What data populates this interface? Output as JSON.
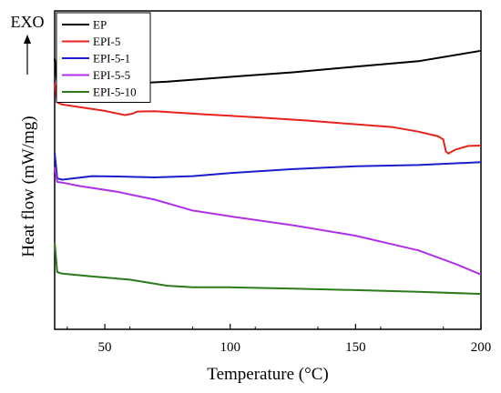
{
  "chart_data": {
    "type": "line",
    "xlabel": "Temperature (°C)",
    "ylabel": "Heat flow (mW/mg)",
    "annotation": "EXO",
    "xlim": [
      30,
      200
    ],
    "ylim": [
      0,
      100
    ],
    "x_ticks": [
      50,
      100,
      150,
      200
    ],
    "y_ticks_shown": false,
    "legend_position": "top-left",
    "series": [
      {
        "name": "EP",
        "color": "#000000",
        "points": [
          [
            30,
            85
          ],
          [
            31,
            76.8
          ],
          [
            35,
            76.2
          ],
          [
            50,
            76.8
          ],
          [
            75,
            77.8
          ],
          [
            100,
            79.3
          ],
          [
            125,
            80.7
          ],
          [
            150,
            82.5
          ],
          [
            175,
            84.2
          ],
          [
            200,
            87.5
          ]
        ]
      },
      {
        "name": "EPI-5",
        "color": "#e8231c",
        "points": [
          [
            30,
            77.5
          ],
          [
            31,
            71.3
          ],
          [
            33,
            70.6
          ],
          [
            40,
            69.8
          ],
          [
            50,
            68.6
          ],
          [
            58,
            67.3
          ],
          [
            61,
            67.7
          ],
          [
            63,
            68.4
          ],
          [
            70,
            68.5
          ],
          [
            90,
            67.5
          ],
          [
            110,
            66.6
          ],
          [
            130,
            65.6
          ],
          [
            150,
            64.4
          ],
          [
            165,
            63.5
          ],
          [
            175,
            62.1
          ],
          [
            183,
            60.6
          ],
          [
            185,
            59.6
          ],
          [
            186,
            55.9
          ],
          [
            187,
            55.2
          ],
          [
            190,
            56.5
          ],
          [
            195,
            57.6
          ],
          [
            200,
            57.7
          ]
        ]
      },
      {
        "name": "EPI-5-1",
        "color": "#1c1ccc",
        "points": [
          [
            30,
            55.5
          ],
          [
            31,
            47.4
          ],
          [
            33,
            47.0
          ],
          [
            45,
            48.1
          ],
          [
            55,
            48.0
          ],
          [
            70,
            47.7
          ],
          [
            85,
            48.1
          ],
          [
            100,
            49.1
          ],
          [
            125,
            50.3
          ],
          [
            150,
            51.2
          ],
          [
            175,
            51.6
          ],
          [
            200,
            52.5
          ]
        ]
      },
      {
        "name": "EPI-5-5",
        "color": "#b030e8",
        "points": [
          [
            30,
            51
          ],
          [
            31,
            46.3
          ],
          [
            33,
            46.1
          ],
          [
            40,
            45.0
          ],
          [
            55,
            43.2
          ],
          [
            70,
            40.7
          ],
          [
            85,
            37.3
          ],
          [
            100,
            35.5
          ],
          [
            125,
            32.7
          ],
          [
            150,
            29.4
          ],
          [
            175,
            24.8
          ],
          [
            190,
            20.5
          ],
          [
            200,
            17.2
          ]
        ]
      },
      {
        "name": "EPI-5-10",
        "color": "#2d7a1a",
        "points": [
          [
            30,
            27.5
          ],
          [
            31,
            18.0
          ],
          [
            33,
            17.5
          ],
          [
            45,
            16.6
          ],
          [
            60,
            15.6
          ],
          [
            75,
            13.7
          ],
          [
            85,
            13.2
          ],
          [
            100,
            13.2
          ],
          [
            125,
            12.8
          ],
          [
            150,
            12.3
          ],
          [
            175,
            11.8
          ],
          [
            200,
            11.1
          ]
        ]
      }
    ]
  }
}
